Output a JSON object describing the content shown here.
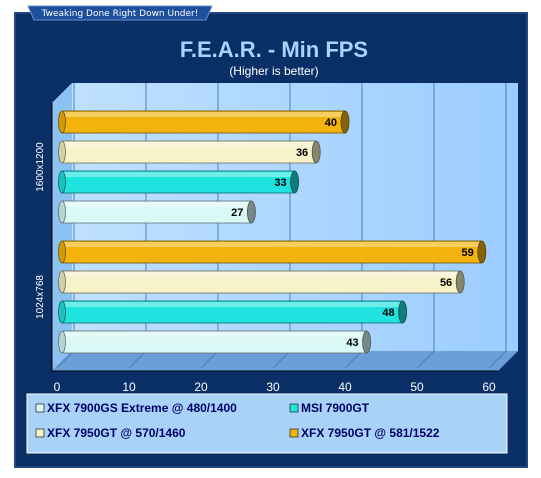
{
  "banner": "Tweaking Done Right Down Under!",
  "chart_data": {
    "type": "bar",
    "orientation": "horizontal",
    "title": "F.E.A.R. - Min FPS",
    "subtitle": "(Higher is better)",
    "categories": [
      "1600x1200",
      "1024x768"
    ],
    "xlim": [
      0,
      60
    ],
    "xticks": [
      0,
      10,
      20,
      30,
      40,
      50,
      60
    ],
    "grid": true,
    "legend_position": "bottom",
    "series": [
      {
        "name": "XFX 7950GT @ 581/1522",
        "color": "#f2b40c",
        "values": [
          40,
          59
        ]
      },
      {
        "name": "XFX 7950GT @ 570/1460",
        "color": "#f7f2c8",
        "values": [
          36,
          56
        ]
      },
      {
        "name": "MSI 7900GT",
        "color": "#1fe3de",
        "values": [
          33,
          48
        ]
      },
      {
        "name": "XFX 7900GS Extreme @ 480/1400",
        "color": "#d9f8f6",
        "values": [
          27,
          43
        ]
      }
    ],
    "legend_order": [
      3,
      2,
      1,
      0
    ]
  }
}
